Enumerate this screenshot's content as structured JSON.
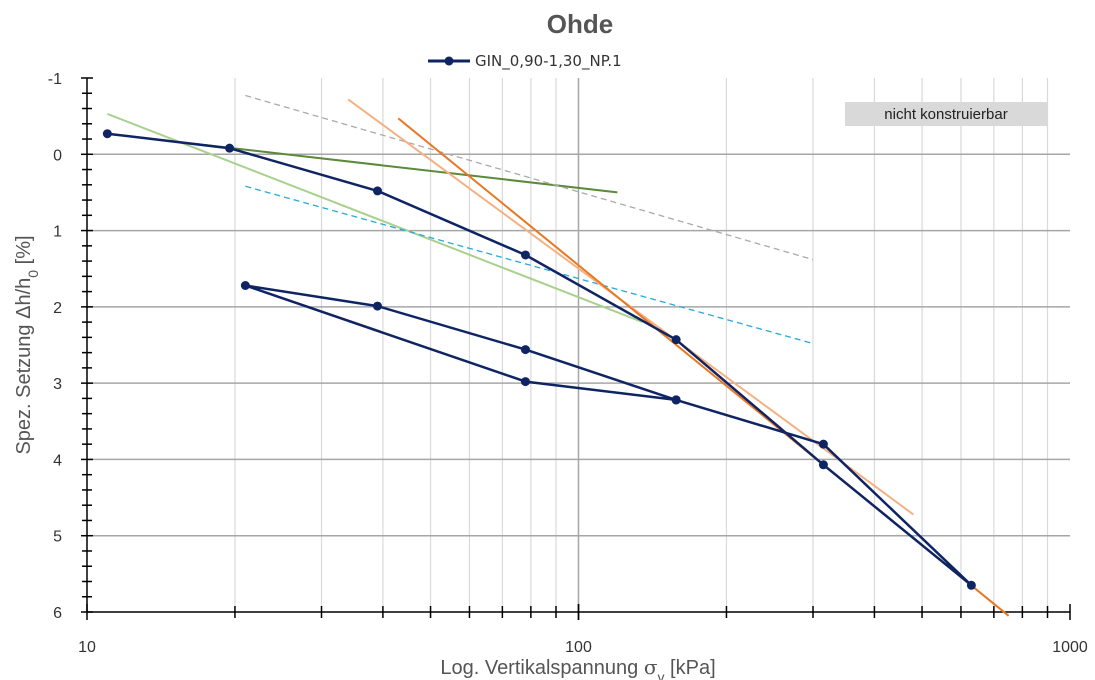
{
  "chart_data": {
    "type": "line",
    "title": "Ohde",
    "xlabel": "Log. Vertikalspannung σ_v [kPa]",
    "ylabel": "Spez. Setzung Δh/h_0 [%]",
    "x_scale": "log",
    "xlim": [
      10,
      1000
    ],
    "ylim": [
      -1,
      6
    ],
    "y_inverted": true,
    "x_ticks": [
      "10",
      "100",
      "1000"
    ],
    "y_ticks": [
      "-1",
      "0",
      "1",
      "2",
      "3",
      "4",
      "5",
      "6"
    ],
    "grid": true,
    "legend_position": "top-center",
    "annotation": "nicht konstruierbar",
    "series": [
      {
        "name": "GIN_0,90-1,30_NP.1",
        "color": "#0f2463",
        "marker": "circle",
        "points": [
          [
            11,
            -0.27
          ],
          [
            19.5,
            -0.08
          ],
          [
            39,
            0.48
          ],
          [
            78,
            1.32
          ],
          [
            158,
            2.43
          ],
          [
            315,
            4.07
          ],
          [
            630,
            5.65
          ],
          [
            315,
            3.8
          ],
          [
            158,
            3.22
          ],
          [
            78,
            2.98
          ],
          [
            21,
            1.72
          ],
          [
            39,
            1.99
          ],
          [
            78,
            2.56
          ],
          [
            158,
            3.22
          ]
        ]
      },
      {
        "color": "#5a8a3a",
        "style": "solid",
        "points": [
          [
            11,
            -0.27
          ],
          [
            120,
            0.5
          ]
        ]
      },
      {
        "color": "#a9d18e",
        "style": "solid",
        "points": [
          [
            11,
            -0.53
          ],
          [
            135,
            2.2
          ]
        ]
      },
      {
        "color": "#aaaaaa",
        "style": "dashed",
        "points": [
          [
            21,
            -0.77
          ],
          [
            300,
            1.38
          ]
        ]
      },
      {
        "color": "#2aa8d8",
        "style": "dashed",
        "points": [
          [
            21,
            0.42
          ],
          [
            300,
            2.48
          ]
        ]
      },
      {
        "color": "#f4b183",
        "style": "solid",
        "points": [
          [
            34,
            -0.72
          ],
          [
            480,
            4.72
          ]
        ]
      },
      {
        "color": "#e87722",
        "style": "solid",
        "points": [
          [
            43,
            -0.47
          ],
          [
            750,
            6.05
          ]
        ]
      }
    ]
  }
}
